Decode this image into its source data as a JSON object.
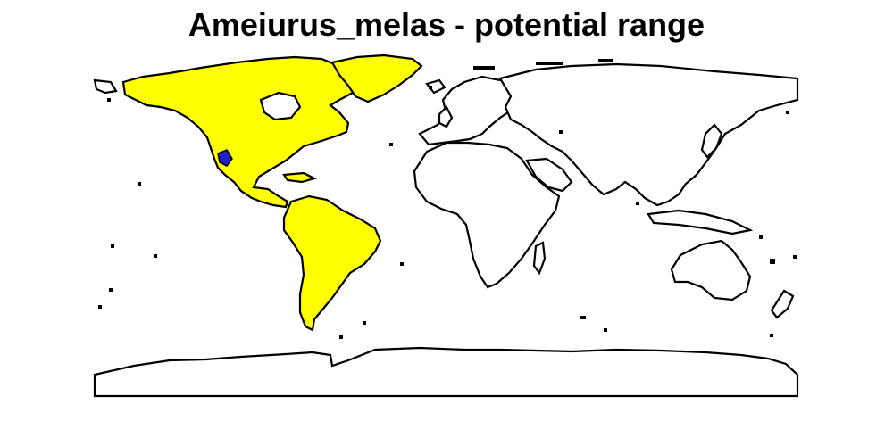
{
  "title": "Ameiurus_melas - potential range",
  "legend": [],
  "colors": {
    "potential_range": "#ffff00",
    "native_area": "#2020c0",
    "land": "#ffffff",
    "outline": "#000000",
    "background": "#ffffff"
  },
  "map": {
    "projection": "equirectangular",
    "highlighted_regions": [
      "North America",
      "Central America",
      "Caribbean",
      "South America"
    ],
    "marked_region": "northwestern Mexico"
  }
}
